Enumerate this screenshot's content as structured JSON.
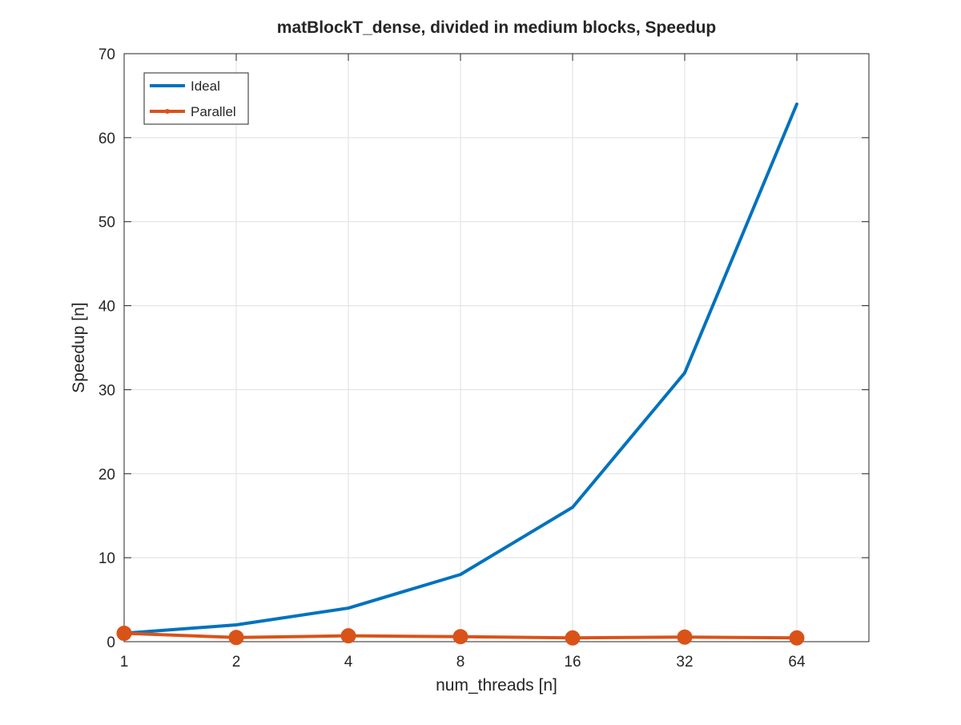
{
  "chart_data": {
    "type": "line",
    "title": "matBlockT_dense, divided in medium blocks, Speedup",
    "xlabel": "num_threads [n]",
    "ylabel": "Speedup [n]",
    "categories": [
      "1",
      "2",
      "4",
      "8",
      "16",
      "32",
      "64"
    ],
    "x_range": [
      1,
      8
    ],
    "ylim": [
      0,
      70
    ],
    "yticks": [
      0,
      10,
      20,
      30,
      40,
      50,
      60,
      70
    ],
    "grid": true,
    "legend_position": "top-left",
    "series": [
      {
        "name": "Ideal",
        "values": [
          1,
          2,
          4,
          8,
          16,
          32,
          64
        ],
        "color": "#0072BD",
        "marker": "none"
      },
      {
        "name": "Parallel",
        "values": [
          1.0,
          0.5,
          0.7,
          0.6,
          0.45,
          0.55,
          0.45
        ],
        "color": "#D95319",
        "marker": "circle"
      }
    ]
  }
}
